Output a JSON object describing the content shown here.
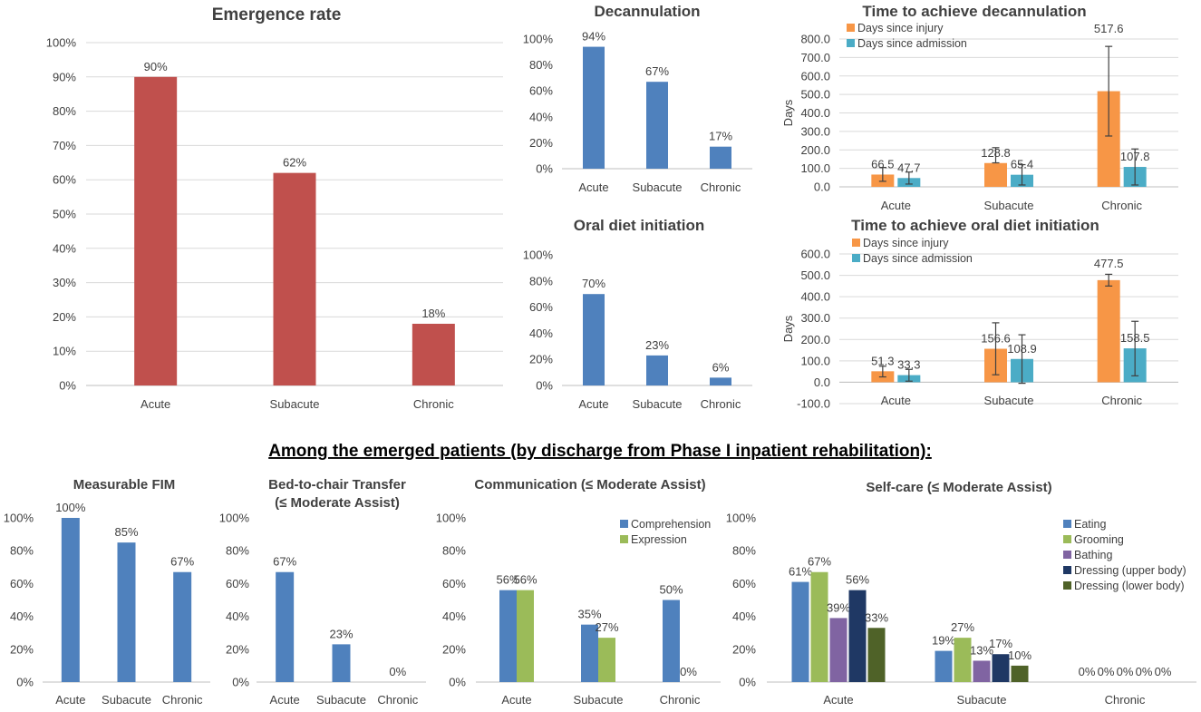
{
  "section_heading": "Among the emerged patients (by discharge from Phase I inpatient rehabilitation):",
  "colors": {
    "red": "#c0504d",
    "blue": "#4f81bd",
    "orange": "#f79646",
    "teal": "#4bacc6",
    "green": "#9bbb59",
    "purple": "#8064a2",
    "navy": "#1f3864",
    "darkgreen": "#4f6228"
  },
  "chart_data": [
    {
      "id": "emergence",
      "type": "bar",
      "title": "Emergence rate",
      "categories": [
        "Acute",
        "Subacute",
        "Chronic"
      ],
      "series": [
        {
          "name": "Emergence rate",
          "color": "red",
          "values": [
            90,
            62,
            18
          ],
          "labels": [
            "90%",
            "62%",
            "18%"
          ]
        }
      ],
      "ylim": [
        0,
        100
      ],
      "yticks": [
        0,
        10,
        20,
        30,
        40,
        50,
        60,
        70,
        80,
        90,
        100
      ],
      "yticklabels": [
        "0%",
        "10%",
        "20%",
        "30%",
        "40%",
        "50%",
        "60%",
        "70%",
        "80%",
        "90%",
        "100%"
      ],
      "grid": true,
      "xlabel": "",
      "ylabel": ""
    },
    {
      "id": "decannulation",
      "type": "bar",
      "title": "Decannulation",
      "categories": [
        "Acute",
        "Subacute",
        "Chronic"
      ],
      "series": [
        {
          "name": "Decannulation",
          "color": "blue",
          "values": [
            94,
            67,
            17
          ],
          "labels": [
            "94%",
            "67%",
            "17%"
          ]
        }
      ],
      "ylim": [
        0,
        100
      ],
      "yticks": [
        0,
        20,
        40,
        60,
        80,
        100
      ],
      "yticklabels": [
        "0%",
        "20%",
        "40%",
        "60%",
        "80%",
        "100%"
      ],
      "grid": false,
      "xlabel": "",
      "ylabel": ""
    },
    {
      "id": "time-decannulation",
      "type": "bar",
      "title": "Time to achieve decannulation",
      "categories": [
        "Acute",
        "Subacute",
        "Chronic"
      ],
      "series": [
        {
          "name": "Days since injury",
          "color": "orange",
          "values": [
            66.5,
            128.8,
            517.6
          ],
          "labels": [
            "66.5",
            "128.8",
            "517.6"
          ],
          "err_low": [
            30,
            130,
            275
          ],
          "err_high": [
            105,
            212,
            760
          ]
        },
        {
          "name": "Days since admission",
          "color": "teal",
          "values": [
            47.7,
            65.4,
            107.8
          ],
          "labels": [
            "47.7",
            "65.4",
            "107.8"
          ],
          "err_low": [
            15,
            10,
            10
          ],
          "err_high": [
            80,
            120,
            205
          ]
        }
      ],
      "ylim": [
        0,
        800
      ],
      "yticks": [
        0,
        100,
        200,
        300,
        400,
        500,
        600,
        700,
        800
      ],
      "yticklabels": [
        "0.0",
        "100.0",
        "200.0",
        "300.0",
        "400.0",
        "500.0",
        "600.0",
        "700.0",
        "800.0"
      ],
      "grid": true,
      "legend": "top-left",
      "xlabel": "",
      "ylabel": "Days"
    },
    {
      "id": "oral-diet",
      "type": "bar",
      "title": "Oral diet initiation",
      "categories": [
        "Acute",
        "Subacute",
        "Chronic"
      ],
      "series": [
        {
          "name": "Oral diet initiation",
          "color": "blue",
          "values": [
            70,
            23,
            6
          ],
          "labels": [
            "70%",
            "23%",
            "6%"
          ]
        }
      ],
      "ylim": [
        0,
        100
      ],
      "yticks": [
        0,
        20,
        40,
        60,
        80,
        100
      ],
      "yticklabels": [
        "0%",
        "20%",
        "40%",
        "60%",
        "80%",
        "100%"
      ],
      "grid": false,
      "xlabel": "",
      "ylabel": ""
    },
    {
      "id": "time-oral-diet",
      "type": "bar",
      "title": "Time to achieve oral diet initiation",
      "categories": [
        "Acute",
        "Subacute",
        "Chronic"
      ],
      "series": [
        {
          "name": "Days since injury",
          "color": "orange",
          "values": [
            51.3,
            156.6,
            477.5
          ],
          "labels": [
            "51.3",
            "156.6",
            "477.5"
          ],
          "err_low": [
            25,
            35,
            450
          ],
          "err_high": [
            75,
            278,
            505
          ]
        },
        {
          "name": "Days since admission",
          "color": "teal",
          "values": [
            33.3,
            108.9,
            158.5
          ],
          "labels": [
            "33.3",
            "108.9",
            "158.5"
          ],
          "err_low": [
            5,
            -5,
            30
          ],
          "err_high": [
            60,
            222,
            285
          ]
        }
      ],
      "ylim": [
        -100,
        600
      ],
      "yticks": [
        -100,
        0,
        100,
        200,
        300,
        400,
        500,
        600
      ],
      "yticklabels": [
        "-100.0",
        "0.0",
        "100.0",
        "200.0",
        "300.0",
        "400.0",
        "500.0",
        "600.0"
      ],
      "grid": true,
      "legend": "top-left",
      "xlabel": "",
      "ylabel": "Days"
    },
    {
      "id": "fim",
      "type": "bar",
      "title": "Measurable FIM",
      "categories": [
        "Acute",
        "Subacute",
        "Chronic"
      ],
      "series": [
        {
          "name": "Measurable FIM",
          "color": "blue",
          "values": [
            100,
            85,
            67
          ],
          "labels": [
            "100%",
            "85%",
            "67%"
          ]
        }
      ],
      "ylim": [
        0,
        100
      ],
      "yticks": [
        0,
        20,
        40,
        60,
        80,
        100
      ],
      "yticklabels": [
        "0%",
        "20%",
        "40%",
        "60%",
        "80%",
        "100%"
      ],
      "grid": false,
      "xlabel": "",
      "ylabel": ""
    },
    {
      "id": "transfer",
      "type": "bar",
      "title": "Bed-to-chair Transfer",
      "title2": "(≤ Moderate Assist)",
      "categories": [
        "Acute",
        "Subacute",
        "Chronic"
      ],
      "series": [
        {
          "name": "Bed-to-chair Transfer",
          "color": "blue",
          "values": [
            67,
            23,
            0
          ],
          "labels": [
            "67%",
            "23%",
            "0%"
          ]
        }
      ],
      "ylim": [
        0,
        100
      ],
      "yticks": [
        0,
        20,
        40,
        60,
        80,
        100
      ],
      "yticklabels": [
        "0%",
        "20%",
        "40%",
        "60%",
        "80%",
        "100%"
      ],
      "grid": false,
      "xlabel": "",
      "ylabel": ""
    },
    {
      "id": "communication",
      "type": "bar",
      "title": "Communication (≤ Moderate Assist)",
      "categories": [
        "Acute",
        "Subacute",
        "Chronic"
      ],
      "series": [
        {
          "name": "Comprehension",
          "color": "blue",
          "values": [
            56,
            35,
            50
          ],
          "labels": [
            "56%",
            "35%",
            "50%"
          ]
        },
        {
          "name": "Expression",
          "color": "green",
          "values": [
            56,
            27,
            0
          ],
          "labels": [
            "56%",
            "27%",
            "0%"
          ]
        }
      ],
      "ylim": [
        0,
        100
      ],
      "yticks": [
        0,
        20,
        40,
        60,
        80,
        100
      ],
      "yticklabels": [
        "0%",
        "20%",
        "40%",
        "60%",
        "80%",
        "100%"
      ],
      "grid": false,
      "legend": "top-right",
      "xlabel": "",
      "ylabel": ""
    },
    {
      "id": "selfcare",
      "type": "bar",
      "title": "Self-care (≤ Moderate Assist)",
      "categories": [
        "Acute",
        "Subacute",
        "Chronic"
      ],
      "series": [
        {
          "name": "Eating",
          "color": "blue",
          "values": [
            61,
            19,
            0
          ],
          "labels": [
            "61%",
            "19%",
            "0%"
          ]
        },
        {
          "name": "Grooming",
          "color": "green",
          "values": [
            67,
            27,
            0
          ],
          "labels": [
            "67%",
            "27%",
            "0%"
          ]
        },
        {
          "name": "Bathing",
          "color": "purple",
          "values": [
            39,
            13,
            0
          ],
          "labels": [
            "39%",
            "13%",
            "0%"
          ]
        },
        {
          "name": "Dressing (upper body)",
          "color": "navy",
          "values": [
            56,
            17,
            0
          ],
          "labels": [
            "56%",
            "17%",
            "0%"
          ]
        },
        {
          "name": "Dressing (lower body)",
          "color": "darkgreen",
          "values": [
            33,
            10,
            0
          ],
          "labels": [
            "33%",
            "10%",
            "0%"
          ]
        }
      ],
      "ylim": [
        0,
        100
      ],
      "yticks": [
        0,
        20,
        40,
        60,
        80,
        100
      ],
      "yticklabels": [
        "0%",
        "20%",
        "40%",
        "60%",
        "80%",
        "100%"
      ],
      "grid": false,
      "legend": "top-right",
      "xlabel": "",
      "ylabel": ""
    }
  ]
}
